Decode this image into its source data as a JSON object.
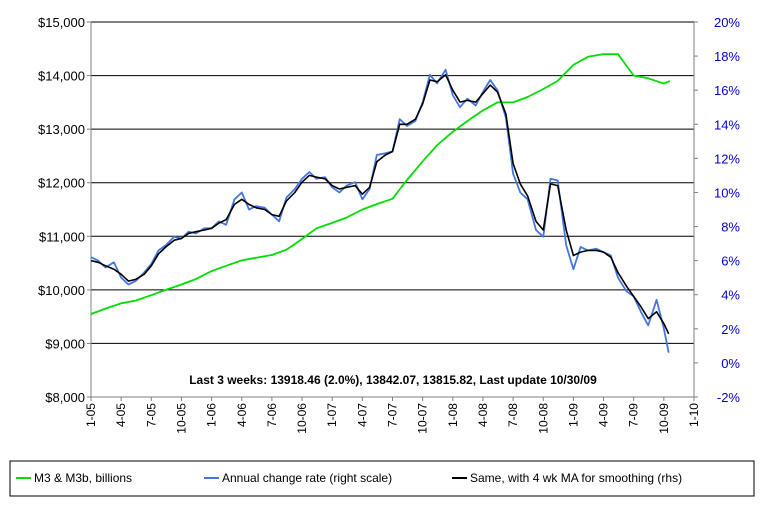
{
  "chart_data": {
    "type": "line",
    "annotation": "Last 3 weeks: 13918.46 (2.0%), 13842.07, 13815.82, Last update 10/30/09",
    "left_axis": {
      "ticks": [
        8000,
        9000,
        10000,
        11000,
        12000,
        13000,
        14000,
        15000
      ],
      "tick_labels": [
        "$8,000",
        "$9,000",
        "$10,000",
        "$11,000",
        "$12,000",
        "$13,000",
        "$14,000",
        "$15,000"
      ],
      "ylim": [
        8000,
        15000
      ],
      "color": "#000000"
    },
    "right_axis": {
      "ticks": [
        -2,
        0,
        2,
        4,
        6,
        8,
        10,
        12,
        14,
        16,
        18,
        20
      ],
      "tick_labels": [
        "-2%",
        "0%",
        "2%",
        "4%",
        "6%",
        "8%",
        "10%",
        "12%",
        "14%",
        "16%",
        "18%",
        "20%"
      ],
      "ylim": [
        -2,
        20
      ],
      "color": "#0000cc"
    },
    "x_axis": {
      "ticks": [
        2005.0,
        2005.25,
        2005.5,
        2005.75,
        2006.0,
        2006.25,
        2006.5,
        2006.75,
        2007.0,
        2007.25,
        2007.5,
        2007.75,
        2008.0,
        2008.25,
        2008.5,
        2008.75,
        2009.0,
        2009.25,
        2009.5,
        2009.75,
        2010.0
      ],
      "tick_labels": [
        "1-05",
        "4-05",
        "7-05",
        "10-05",
        "1-06",
        "4-06",
        "7-06",
        "10-06",
        "1-07",
        "4-07",
        "7-07",
        "10-07",
        "1-08",
        "4-08",
        "7-08",
        "10-08",
        "1-09",
        "4-09",
        "7-09",
        "10-09",
        "1-10"
      ],
      "xlim": [
        2005.0,
        2010.0
      ]
    },
    "grid": "horizontal",
    "legend_position": "bottom",
    "series": [
      {
        "name": "M3 & M3b, billions",
        "axis": "left",
        "color": "#00dd00",
        "x": [
          2005.0,
          2005.12,
          2005.25,
          2005.37,
          2005.5,
          2005.62,
          2005.75,
          2005.87,
          2006.0,
          2006.12,
          2006.25,
          2006.37,
          2006.5,
          2006.62,
          2006.75,
          2006.87,
          2007.0,
          2007.12,
          2007.25,
          2007.37,
          2007.5,
          2007.62,
          2007.75,
          2007.87,
          2008.0,
          2008.12,
          2008.25,
          2008.37,
          2008.5,
          2008.62,
          2008.75,
          2008.87,
          2009.0,
          2009.12,
          2009.25,
          2009.37,
          2009.5,
          2009.62,
          2009.75,
          2009.8
        ],
        "values": [
          9550,
          9650,
          9750,
          9800,
          9900,
          10000,
          10100,
          10200,
          10350,
          10450,
          10550,
          10600,
          10650,
          10750,
          10950,
          11150,
          11250,
          11350,
          11500,
          11600,
          11700,
          12050,
          12400,
          12700,
          12950,
          13150,
          13350,
          13500,
          13500,
          13600,
          13750,
          13900,
          14200,
          14350,
          14400,
          14400,
          14000,
          13950,
          13850,
          13900
        ]
      },
      {
        "name": "Annual change rate (right scale)",
        "axis": "right",
        "color": "#4477dd",
        "x": [
          2005.0,
          2005.06,
          2005.12,
          2005.19,
          2005.25,
          2005.31,
          2005.37,
          2005.44,
          2005.5,
          2005.56,
          2005.62,
          2005.69,
          2005.75,
          2005.81,
          2005.87,
          2005.94,
          2006.0,
          2006.06,
          2006.12,
          2006.19,
          2006.25,
          2006.31,
          2006.37,
          2006.44,
          2006.5,
          2006.56,
          2006.62,
          2006.69,
          2006.75,
          2006.81,
          2006.87,
          2006.94,
          2007.0,
          2007.06,
          2007.12,
          2007.19,
          2007.25,
          2007.31,
          2007.37,
          2007.44,
          2007.5,
          2007.56,
          2007.62,
          2007.69,
          2007.75,
          2007.81,
          2007.87,
          2007.94,
          2008.0,
          2008.06,
          2008.12,
          2008.19,
          2008.25,
          2008.31,
          2008.37,
          2008.44,
          2008.5,
          2008.56,
          2008.62,
          2008.69,
          2008.75,
          2008.81,
          2008.87,
          2008.94,
          2009.0,
          2009.06,
          2009.12,
          2009.19,
          2009.25,
          2009.31,
          2009.37,
          2009.44,
          2009.5,
          2009.56,
          2009.62,
          2009.69,
          2009.75,
          2009.79
        ],
        "values": [
          6.2,
          6.0,
          5.6,
          5.9,
          5.0,
          4.6,
          4.8,
          5.3,
          5.8,
          6.6,
          6.9,
          7.4,
          7.3,
          7.7,
          7.6,
          7.9,
          7.9,
          8.3,
          8.1,
          9.6,
          10.0,
          9.0,
          9.2,
          9.1,
          8.7,
          8.3,
          9.7,
          10.2,
          10.8,
          11.2,
          10.8,
          10.9,
          10.3,
          10.0,
          10.4,
          10.6,
          9.6,
          10.2,
          12.2,
          12.3,
          12.4,
          14.3,
          13.9,
          14.2,
          15.3,
          16.9,
          16.4,
          17.2,
          15.7,
          15.0,
          15.5,
          15.1,
          15.9,
          16.6,
          16.0,
          14.4,
          11.1,
          10.0,
          9.6,
          7.8,
          7.4,
          10.8,
          10.7,
          6.9,
          5.5,
          6.8,
          6.6,
          6.7,
          6.5,
          6.3,
          5.0,
          4.2,
          3.9,
          3.0,
          2.2,
          3.7,
          2.0,
          0.6
        ]
      },
      {
        "name": "Same, with 4 wk MA for smoothing (rhs)",
        "axis": "right",
        "color": "#000000",
        "x": [
          2005.0,
          2005.06,
          2005.12,
          2005.19,
          2005.25,
          2005.31,
          2005.37,
          2005.44,
          2005.5,
          2005.56,
          2005.62,
          2005.69,
          2005.75,
          2005.81,
          2005.87,
          2005.94,
          2006.0,
          2006.06,
          2006.12,
          2006.19,
          2006.25,
          2006.31,
          2006.37,
          2006.44,
          2006.5,
          2006.56,
          2006.62,
          2006.69,
          2006.75,
          2006.81,
          2006.87,
          2006.94,
          2007.0,
          2007.06,
          2007.12,
          2007.19,
          2007.25,
          2007.31,
          2007.37,
          2007.44,
          2007.5,
          2007.56,
          2007.62,
          2007.69,
          2007.75,
          2007.81,
          2007.87,
          2007.94,
          2008.0,
          2008.06,
          2008.12,
          2008.19,
          2008.25,
          2008.31,
          2008.37,
          2008.44,
          2008.5,
          2008.56,
          2008.62,
          2008.69,
          2008.75,
          2008.81,
          2008.87,
          2008.94,
          2009.0,
          2009.06,
          2009.12,
          2009.19,
          2009.25,
          2009.31,
          2009.37,
          2009.44,
          2009.5,
          2009.56,
          2009.62,
          2009.69,
          2009.75,
          2009.79
        ],
        "values": [
          6.0,
          5.9,
          5.7,
          5.5,
          5.2,
          4.8,
          4.9,
          5.2,
          5.7,
          6.4,
          6.8,
          7.2,
          7.3,
          7.6,
          7.7,
          7.8,
          7.9,
          8.2,
          8.4,
          9.3,
          9.6,
          9.3,
          9.1,
          9.0,
          8.7,
          8.6,
          9.5,
          10.0,
          10.6,
          11.0,
          10.9,
          10.8,
          10.4,
          10.2,
          10.3,
          10.4,
          9.9,
          10.3,
          11.8,
          12.2,
          12.4,
          14.0,
          14.0,
          14.3,
          15.2,
          16.6,
          16.5,
          16.9,
          16.0,
          15.3,
          15.4,
          15.3,
          15.8,
          16.3,
          15.9,
          14.6,
          11.7,
          10.5,
          9.8,
          8.3,
          7.8,
          10.5,
          10.4,
          7.8,
          6.3,
          6.5,
          6.6,
          6.6,
          6.5,
          6.2,
          5.3,
          4.5,
          3.9,
          3.3,
          2.6,
          3.0,
          2.3,
          1.7
        ]
      }
    ]
  }
}
